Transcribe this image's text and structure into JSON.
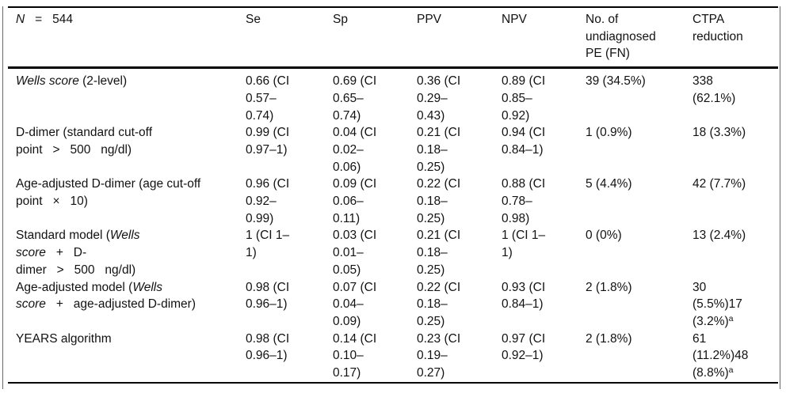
{
  "table": {
    "header": {
      "n": [
        {
          "t": "N",
          "i": true
        },
        {
          "t": "   =   544"
        }
      ],
      "cols": [
        "Se",
        "Sp",
        "PPV",
        "NPV",
        "No. of\nundiagnosed\nPE (FN)",
        "CTPA\nreduction"
      ]
    },
    "rows": [
      {
        "label": [
          {
            "t": "Wells score",
            "i": true
          },
          {
            "t": " (2-level)"
          }
        ],
        "se": "0.66 (CI\n0.57–\n0.74)",
        "sp": "0.69 (CI\n0.65–\n0.74)",
        "ppv": "0.36 (CI\n0.29–\n0.43)",
        "npv": "0.89 (CI\n0.85–\n0.92)",
        "fn": "39 (34.5%)",
        "ctpa": [
          {
            "t": "338\n(62.1%)"
          }
        ]
      },
      {
        "label": [
          {
            "t": "D-dimer (standard cut-off\npoint   >   500   ng/dl)"
          }
        ],
        "se": "0.99 (CI\n0.97–1)",
        "sp": "0.04 (CI\n0.02–\n0.06)",
        "ppv": "0.21 (CI\n0.18–\n0.25)",
        "npv": "0.94 (CI\n0.84–1)",
        "fn": "1 (0.9%)",
        "ctpa": [
          {
            "t": "18 (3.3%)"
          }
        ]
      },
      {
        "label": [
          {
            "t": "Age-adjusted D-dimer (age cut-off\npoint   ×   10)"
          }
        ],
        "se": "0.96 (CI\n0.92–\n0.99)",
        "sp": "0.09 (CI\n0.06–\n0.11)",
        "ppv": "0.22 (CI\n0.18–\n0.25)",
        "npv": "0.88 (CI\n0.78–\n0.98)",
        "fn": "5 (4.4%)",
        "ctpa": [
          {
            "t": "42 (7.7%)"
          }
        ]
      },
      {
        "label": [
          {
            "t": "Standard model ("
          },
          {
            "t": "Wells",
            "i": true
          },
          {
            "t": "\n"
          },
          {
            "t": "score",
            "i": true
          },
          {
            "t": "   +   D-\ndimer   >   500   ng/dl)"
          }
        ],
        "se": "1 (CI 1–\n1)",
        "sp": "0.03 (CI\n0.01–\n0.05)",
        "ppv": "0.21 (CI\n0.18–\n0.25)",
        "npv": "1 (CI 1–\n1)",
        "fn": "0 (0%)",
        "ctpa": [
          {
            "t": "13 (2.4%)"
          }
        ]
      },
      {
        "label": [
          {
            "t": "Age-adjusted model ("
          },
          {
            "t": "Wells",
            "i": true
          },
          {
            "t": "\n"
          },
          {
            "t": "score",
            "i": true
          },
          {
            "t": "   +   age-adjusted D-dimer)"
          }
        ],
        "se": "0.98 (CI\n0.96–1)",
        "sp": "0.07 (CI\n0.04–\n0.09)",
        "ppv": "0.22 (CI\n0.18–\n0.25)",
        "npv": "0.93 (CI\n0.84–1)",
        "fn": "2 (1.8%)",
        "ctpa": [
          {
            "t": "30\n(5.5%)17\n(3.2%)"
          },
          {
            "t": "a",
            "s": true
          }
        ]
      },
      {
        "label": [
          {
            "t": "YEARS algorithm"
          }
        ],
        "se": "0.98 (CI\n0.96–1)",
        "sp": "0.14 (CI\n0.10–\n0.17)",
        "ppv": "0.23 (CI\n0.19–\n0.27)",
        "npv": "0.97 (CI\n0.92–1)",
        "fn": "2 (1.8%)",
        "ctpa": [
          {
            "t": "61\n(11.2%)48\n(8.8%)"
          },
          {
            "t": "a",
            "s": true
          }
        ]
      }
    ]
  }
}
